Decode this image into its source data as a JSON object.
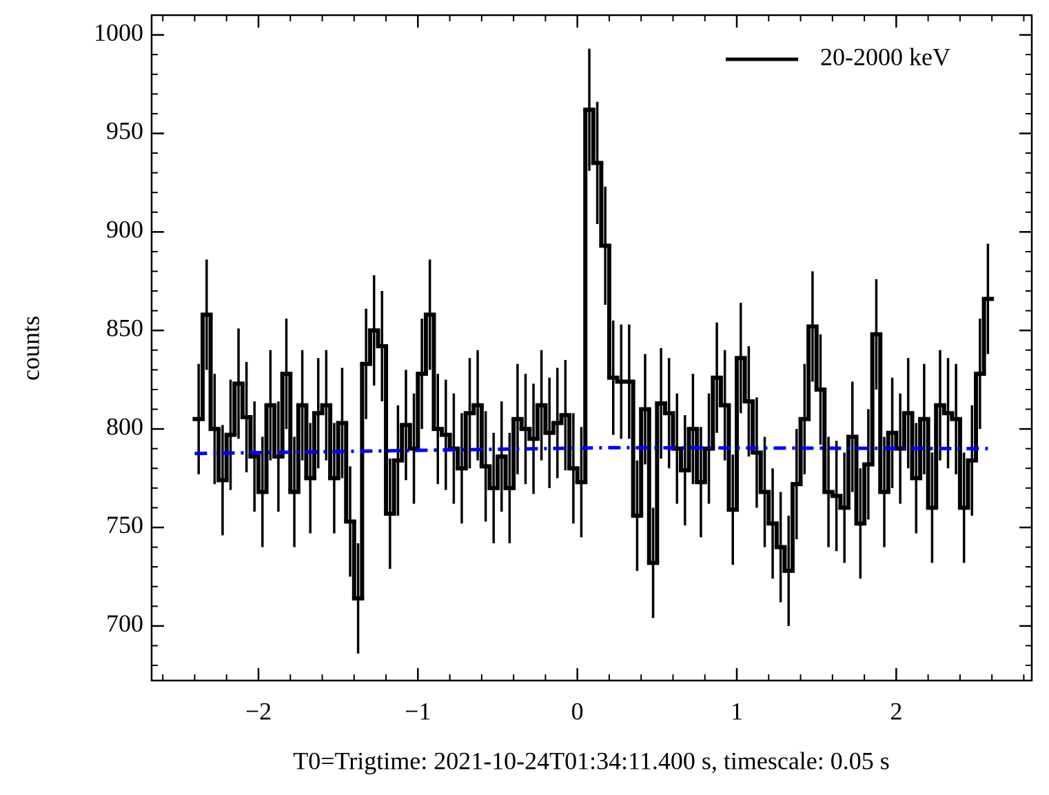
{
  "chart_data": {
    "type": "histogram",
    "xlabel": "T0=Trigtime: 2021-10-24T01:34:11.400 s, timescale: 0.05 s",
    "ylabel": "counts",
    "bins": [
      -2.4,
      -2.35,
      -2.3,
      -2.25,
      -2.2,
      -2.15,
      -2.1,
      -2.05,
      -2.0,
      -1.95,
      -1.9,
      -1.85,
      -1.8,
      -1.75,
      -1.7,
      -1.65,
      -1.6,
      -1.55,
      -1.5,
      -1.45,
      -1.4,
      -1.35,
      -1.3,
      -1.25,
      -1.2,
      -1.15,
      -1.1,
      -1.05,
      -1.0,
      -0.95,
      -0.9,
      -0.85,
      -0.8,
      -0.75,
      -0.7,
      -0.65,
      -0.6,
      -0.55,
      -0.5,
      -0.45,
      -0.4,
      -0.35,
      -0.3,
      -0.25,
      -0.2,
      -0.15,
      -0.1,
      -0.05,
      0.0,
      0.05,
      0.1,
      0.15,
      0.2,
      0.25,
      0.3,
      0.35,
      0.4,
      0.45,
      0.5,
      0.55,
      0.6,
      0.65,
      0.7,
      0.75,
      0.8,
      0.85,
      0.9,
      0.95,
      1.0,
      1.05,
      1.1,
      1.15,
      1.2,
      1.25,
      1.3,
      1.35,
      1.4,
      1.45,
      1.5,
      1.55,
      1.6,
      1.65,
      1.7,
      1.75,
      1.8,
      1.85,
      1.9,
      1.95,
      2.0,
      2.05,
      2.1,
      2.15,
      2.2,
      2.25,
      2.3,
      2.35,
      2.4,
      2.45,
      2.5,
      2.55,
      2.6
    ],
    "series": [
      {
        "name": "20-2000 keV",
        "color": "#000000",
        "values": [
          805,
          858,
          800,
          774,
          797,
          823,
          806,
          786,
          768,
          812,
          786,
          828,
          768,
          812,
          775,
          808,
          812,
          775,
          803,
          753,
          714,
          833,
          850,
          842,
          757,
          784,
          802,
          790,
          828,
          858,
          800,
          797,
          790,
          780,
          808,
          812,
          781,
          770,
          786,
          770,
          805,
          800,
          795,
          812,
          798,
          803,
          807,
          780,
          773,
          962,
          935,
          893,
          826,
          824,
          824,
          756,
          810,
          732,
          813,
          808,
          790,
          779,
          800,
          773,
          790,
          826,
          812,
          759,
          836,
          814,
          788,
          768,
          752,
          740,
          728,
          772,
          805,
          852,
          820,
          768,
          766,
          760,
          796,
          752,
          782,
          848,
          768,
          798,
          790,
          808,
          775,
          805,
          760,
          812,
          808,
          805,
          760,
          784,
          828,
          866
        ],
        "errors": [
          28,
          28,
          28,
          28,
          28,
          28,
          28,
          28,
          28,
          28,
          28,
          28,
          28,
          28,
          28,
          28,
          28,
          28,
          28,
          28,
          28,
          28,
          28,
          28,
          28,
          28,
          28,
          28,
          28,
          28,
          28,
          28,
          28,
          28,
          28,
          28,
          28,
          28,
          28,
          28,
          28,
          28,
          28,
          28,
          28,
          28,
          28,
          28,
          28,
          31,
          31,
          30,
          29,
          29,
          29,
          28,
          28,
          28,
          28,
          28,
          28,
          28,
          28,
          28,
          28,
          28,
          28,
          28,
          28,
          28,
          28,
          28,
          28,
          28,
          28,
          28,
          28,
          28,
          28,
          28,
          28,
          28,
          28,
          28,
          28,
          28,
          28,
          28,
          28,
          28,
          28,
          28,
          28,
          28,
          28,
          28,
          28,
          28,
          28,
          28
        ]
      }
    ],
    "fit_line": {
      "color": "#0000ff",
      "x": [
        -2.4,
        0.2,
        2.6
      ],
      "values": [
        787.5,
        790.5,
        790
      ]
    },
    "xlim": [
      -2.67,
      2.85
    ],
    "ylim": [
      672.3,
      1010
    ],
    "xticks": [
      {
        "value": -2,
        "label": "−2"
      },
      {
        "value": -1,
        "label": "−1"
      },
      0,
      1,
      2
    ],
    "yticks": [
      700,
      750,
      800,
      850,
      900,
      950,
      1000
    ],
    "legend": "upper right"
  }
}
